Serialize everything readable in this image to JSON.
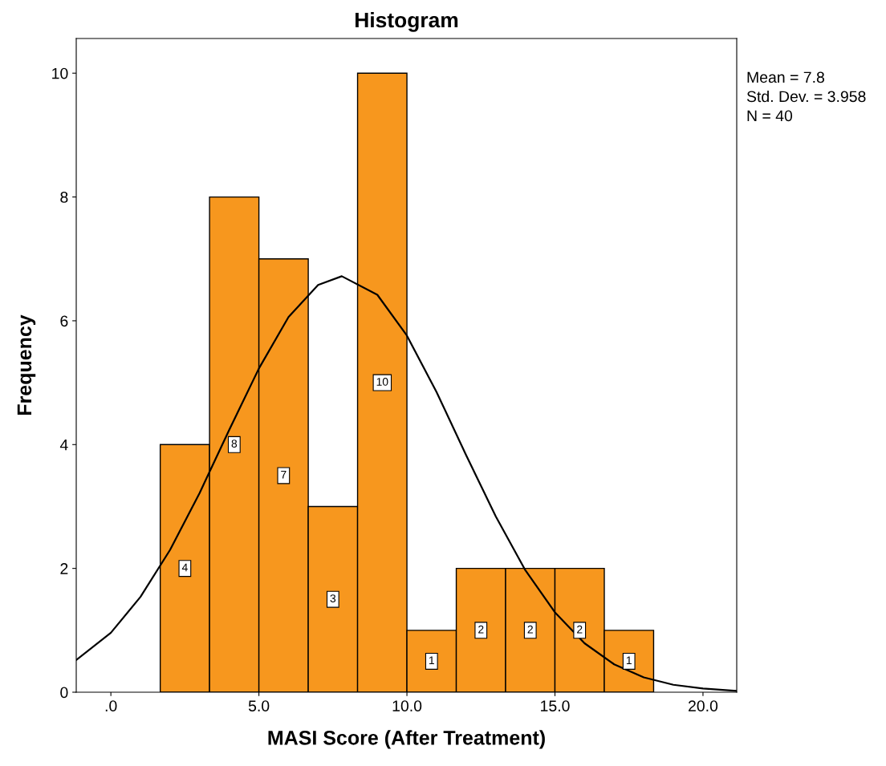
{
  "chart_data": {
    "type": "histogram",
    "title": "Histogram",
    "xlabel": "MASI Score (After Treatment)",
    "ylabel": "Frequency",
    "xlim": [
      -1.17,
      21.14
    ],
    "ylim": [
      0,
      10.56
    ],
    "xticks": [
      {
        "value": 0,
        "label": ".0"
      },
      {
        "value": 5,
        "label": "5.0"
      },
      {
        "value": 10,
        "label": "10.0"
      },
      {
        "value": 15,
        "label": "15.0"
      },
      {
        "value": 20,
        "label": "20.0"
      }
    ],
    "yticks": [
      0,
      2,
      4,
      6,
      8,
      10
    ],
    "grid": false,
    "series": [
      {
        "color": "#f7971e",
        "bins": [
          1.667,
          3.333,
          5.0,
          6.667,
          8.333,
          10.0,
          11.667,
          13.333,
          15.0,
          16.667,
          18.333
        ],
        "values": [
          4,
          8,
          7,
          3,
          10,
          1,
          2,
          2,
          2,
          1
        ],
        "value_labels": [
          "4",
          "8",
          "7",
          "3",
          "10",
          "1",
          "2",
          "2",
          "2",
          "1"
        ]
      },
      {
        "type": "line",
        "color": "#000000",
        "x": [
          -1.17,
          0,
          1,
          2,
          3,
          4,
          5,
          6,
          7,
          7.8,
          9,
          10,
          11,
          12,
          13,
          14,
          15,
          16,
          17,
          18,
          19,
          20,
          21.14
        ],
        "values": [
          0.52,
          0.96,
          1.54,
          2.3,
          3.22,
          4.24,
          5.23,
          6.06,
          6.58,
          6.72,
          6.42,
          5.76,
          4.85,
          3.83,
          2.84,
          1.97,
          1.29,
          0.79,
          0.45,
          0.24,
          0.12,
          0.06,
          0.02
        ]
      }
    ],
    "annotations": [
      "Mean = 7.8",
      "Std. Dev. = 3.958",
      "N = 40"
    ]
  }
}
